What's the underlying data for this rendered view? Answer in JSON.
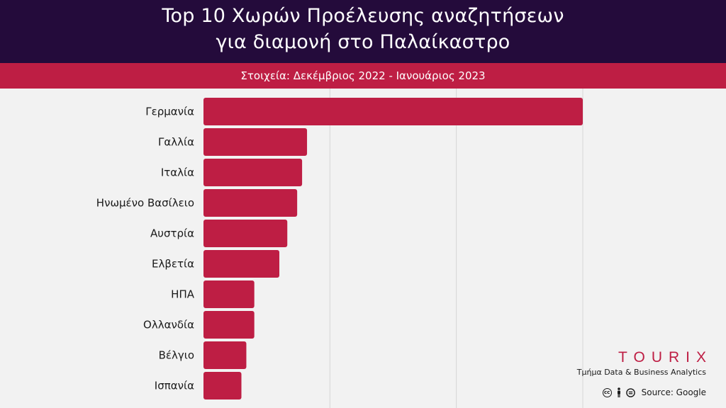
{
  "header": {
    "title_line1": "Top 10 Χωρών Προέλευσης αναζητήσεων",
    "title_line2": "για διαμονή στο Παλαίκαστρο",
    "subtitle": "Στοιχεία: Δεκέμβριος 2022 - Ιανουάριος 2023"
  },
  "brand": {
    "name": "TOURIX",
    "tagline": "Τμήμα Data & Business Analytics"
  },
  "footer": {
    "source": "Source: Google",
    "license_icons": [
      "creative-commons-icon",
      "attribution-icon",
      "no-derivatives-icon"
    ]
  },
  "colors": {
    "header_bg": "#240b3b",
    "accent": "#be1e44",
    "background": "#f2f2f2"
  },
  "chart_data": {
    "type": "bar",
    "orientation": "horizontal",
    "title": "Top 10 Χωρών Προέλευσης αναζητήσεων για διαμονή στο Παλαίκαστρο",
    "subtitle": "Στοιχεία: Δεκέμβριος 2022 - Ιανουάριος 2023",
    "categories": [
      "Γερμανία",
      "Γαλλία",
      "Ιταλία",
      "Ηνωμένο Βασίλειο",
      "Αυστρία",
      "Ελβετία",
      "ΗΠΑ",
      "Ολλανδία",
      "Βέλγιο",
      "Ισπανία"
    ],
    "values": [
      100,
      27.3,
      26,
      24.7,
      22.1,
      20,
      13.4,
      13.4,
      11.3,
      10
    ],
    "xlim": [
      0,
      100
    ],
    "grid": true,
    "legend": "none",
    "bar_color": "#be1e44"
  }
}
